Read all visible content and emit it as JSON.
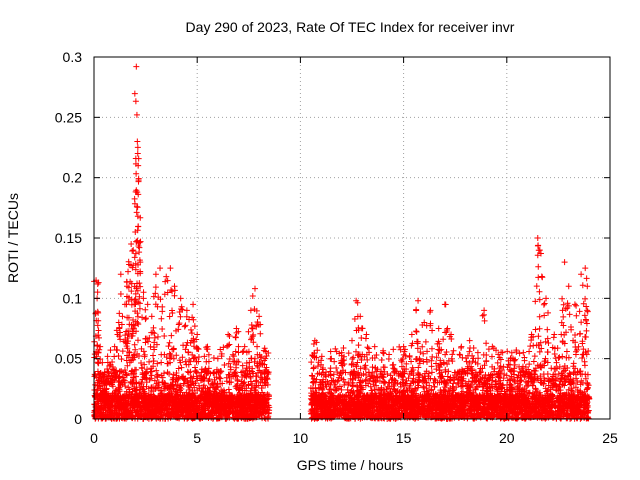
{
  "chart_data": {
    "type": "scatter",
    "title": "Day 290 of 2023, Rate Of TEC Index for receiver invr",
    "xlabel": "GPS time / hours",
    "ylabel": "ROTI / TECUs",
    "xlim": [
      0,
      25
    ],
    "ylim": [
      0,
      0.3
    ],
    "xticks": [
      0,
      5,
      10,
      15,
      20,
      25
    ],
    "xtick_labels": [
      "0",
      "5",
      "10",
      "15",
      "20",
      "25"
    ],
    "yticks": [
      0,
      0.05,
      0.1,
      0.15,
      0.2,
      0.25,
      0.3
    ],
    "ytick_labels": [
      "0",
      "0.05",
      "0.1",
      "0.15",
      "0.2",
      "0.25",
      "0.3"
    ],
    "grid": true,
    "marker": "+",
    "colors": {
      "series": "#ff0000",
      "grid": "#a0a0a0",
      "axis": "#000000"
    },
    "series": [
      {
        "name": "ROTI",
        "segments": [
          {
            "x_range": [
              0,
              8.5
            ],
            "points": [
              [
                0.1,
                0.115
              ],
              [
                0.15,
                0.1
              ],
              [
                0.2,
                0.088
              ],
              [
                0.3,
                0.06
              ],
              [
                0.5,
                0.035
              ],
              [
                0.8,
                0.045
              ],
              [
                1.0,
                0.06
              ],
              [
                1.2,
                0.08
              ],
              [
                1.3,
                0.12
              ],
              [
                1.5,
                0.095
              ],
              [
                1.6,
                0.11
              ],
              [
                1.7,
                0.128
              ],
              [
                1.8,
                0.145
              ],
              [
                1.9,
                0.14
              ],
              [
                2.0,
                0.155
              ],
              [
                2.05,
                0.292
              ],
              [
                2.08,
                0.252
              ],
              [
                2.1,
                0.23
              ],
              [
                2.12,
                0.22
              ],
              [
                2.14,
                0.21
              ],
              [
                2.16,
                0.198
              ],
              [
                2.2,
                0.142
              ],
              [
                2.4,
                0.105
              ],
              [
                2.6,
                0.095
              ],
              [
                2.8,
                0.085
              ],
              [
                3.0,
                0.12
              ],
              [
                3.2,
                0.125
              ],
              [
                3.5,
                0.118
              ],
              [
                3.7,
                0.125
              ],
              [
                3.9,
                0.11
              ],
              [
                4.2,
                0.1
              ],
              [
                4.5,
                0.09
              ],
              [
                4.8,
                0.095
              ],
              [
                5.0,
                0.07
              ],
              [
                5.5,
                0.06
              ],
              [
                6.0,
                0.05
              ],
              [
                6.5,
                0.07
              ],
              [
                6.9,
                0.075
              ],
              [
                7.3,
                0.06
              ],
              [
                7.6,
                0.09
              ],
              [
                7.8,
                0.108
              ],
              [
                8.0,
                0.085
              ],
              [
                8.3,
                0.05
              ]
            ]
          },
          {
            "x_range": [
              10.5,
              24
            ],
            "points": [
              [
                10.7,
                0.065
              ],
              [
                11.0,
                0.045
              ],
              [
                11.5,
                0.05
              ],
              [
                12.0,
                0.055
              ],
              [
                12.5,
                0.065
              ],
              [
                12.7,
                0.098
              ],
              [
                12.9,
                0.085
              ],
              [
                13.2,
                0.07
              ],
              [
                13.6,
                0.06
              ],
              [
                14.0,
                0.055
              ],
              [
                14.5,
                0.045
              ],
              [
                15.0,
                0.06
              ],
              [
                15.4,
                0.07
              ],
              [
                15.7,
                0.098
              ],
              [
                16.0,
                0.08
              ],
              [
                16.3,
                0.09
              ],
              [
                16.7,
                0.075
              ],
              [
                17.0,
                0.095
              ],
              [
                17.3,
                0.07
              ],
              [
                17.8,
                0.06
              ],
              [
                18.2,
                0.065
              ],
              [
                18.6,
                0.055
              ],
              [
                18.9,
                0.09
              ],
              [
                19.3,
                0.06
              ],
              [
                19.8,
                0.055
              ],
              [
                20.3,
                0.05
              ],
              [
                20.8,
                0.055
              ],
              [
                21.2,
                0.07
              ],
              [
                21.5,
                0.15
              ],
              [
                21.6,
                0.14
              ],
              [
                21.9,
                0.1
              ],
              [
                22.3,
                0.07
              ],
              [
                22.7,
                0.09
              ],
              [
                22.8,
                0.13
              ],
              [
                23.0,
                0.11
              ],
              [
                23.3,
                0.095
              ],
              [
                23.6,
                0.12
              ],
              [
                23.8,
                0.125
              ],
              [
                23.9,
                0.11
              ]
            ]
          }
        ]
      }
    ]
  }
}
